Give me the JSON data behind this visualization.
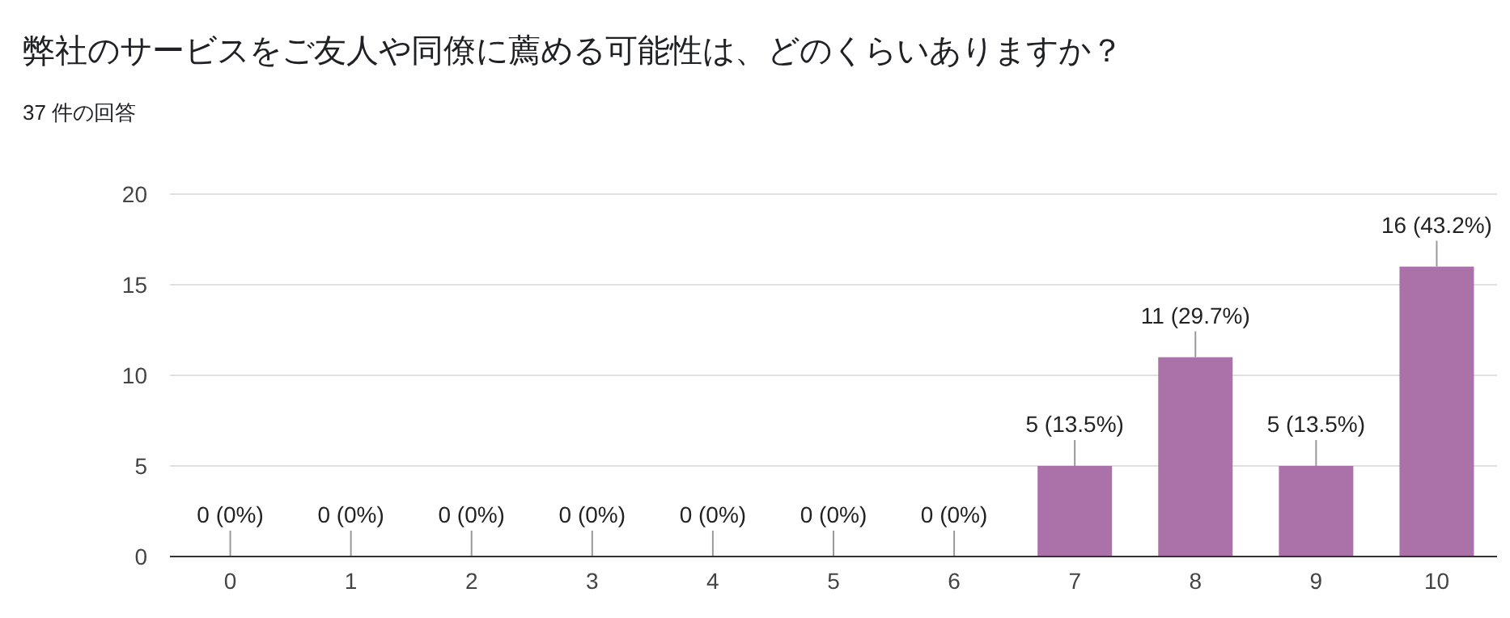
{
  "chart_data": {
    "type": "bar",
    "title": "弊社のサービスをご友人や同僚に薦める可能性は、どのくらいありますか？",
    "subtitle": "37 件の回答",
    "categories": [
      "0",
      "1",
      "2",
      "3",
      "4",
      "5",
      "6",
      "7",
      "8",
      "9",
      "10"
    ],
    "values": [
      0,
      0,
      0,
      0,
      0,
      0,
      0,
      5,
      11,
      5,
      16
    ],
    "value_labels": [
      "0 (0%)",
      "0 (0%)",
      "0 (0%)",
      "0 (0%)",
      "0 (0%)",
      "0 (0%)",
      "0 (0%)",
      "5 (13.5%)",
      "11 (29.7%)",
      "5 (13.5%)",
      "16 (43.2%)"
    ],
    "color": "#ab72aa",
    "ylim": [
      0,
      20
    ],
    "yticks": [
      0,
      5,
      10,
      15,
      20
    ],
    "grid": "y"
  }
}
